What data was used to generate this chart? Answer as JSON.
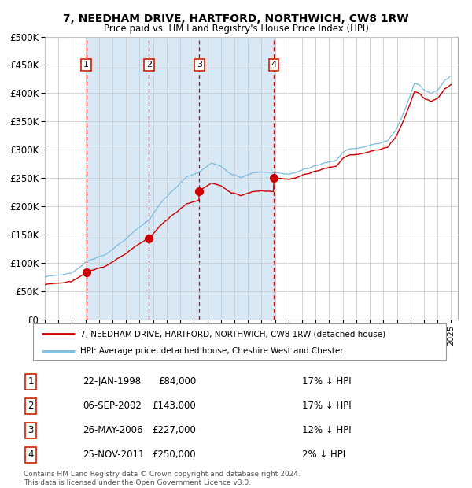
{
  "title1": "7, NEEDHAM DRIVE, HARTFORD, NORTHWICH, CW8 1RW",
  "title2": "Price paid vs. HM Land Registry's House Price Index (HPI)",
  "legend_line1": "7, NEEDHAM DRIVE, HARTFORD, NORTHWICH, CW8 1RW (detached house)",
  "legend_line2": "HPI: Average price, detached house, Cheshire West and Chester",
  "footer1": "Contains HM Land Registry data © Crown copyright and database right 2024.",
  "footer2": "This data is licensed under the Open Government Licence v3.0.",
  "sale_times": [
    1998.06,
    2002.69,
    2006.4,
    2011.9
  ],
  "sale_prices": [
    84000,
    143000,
    227000,
    250000
  ],
  "sale_labels": [
    "1",
    "2",
    "3",
    "4"
  ],
  "sale_table": [
    [
      "1",
      "22-JAN-1998",
      "£84,000",
      "17% ↓ HPI"
    ],
    [
      "2",
      "06-SEP-2002",
      "£143,000",
      "17% ↓ HPI"
    ],
    [
      "3",
      "26-MAY-2006",
      "£227,000",
      "12% ↓ HPI"
    ],
    [
      "4",
      "25-NOV-2011",
      "£250,000",
      "2% ↓ HPI"
    ]
  ],
  "hpi_color": "#7bbde0",
  "price_color": "#cc0000",
  "bg_shaded_color": "#d8e8f5",
  "vline_color": "#cc0000",
  "grid_color": "#cccccc",
  "ylim": [
    0,
    500000
  ],
  "yticks": [
    0,
    50000,
    100000,
    150000,
    200000,
    250000,
    300000,
    350000,
    400000,
    450000,
    500000
  ],
  "xlim_start": 1995.0,
  "xlim_end": 2025.5,
  "hpi_anchors": [
    [
      1995.0,
      75000
    ],
    [
      1996.0,
      78000
    ],
    [
      1997.0,
      82000
    ],
    [
      1998.06,
      101205
    ],
    [
      1999.5,
      115000
    ],
    [
      2001.0,
      138000
    ],
    [
      2002.69,
      172289
    ],
    [
      2003.5,
      200000
    ],
    [
      2004.5,
      228000
    ],
    [
      2005.5,
      252000
    ],
    [
      2006.4,
      257955
    ],
    [
      2007.3,
      275000
    ],
    [
      2008.0,
      270000
    ],
    [
      2008.8,
      252000
    ],
    [
      2009.5,
      246000
    ],
    [
      2010.3,
      255000
    ],
    [
      2011.0,
      258000
    ],
    [
      2011.9,
      255102
    ],
    [
      2012.5,
      253000
    ],
    [
      2013.0,
      252000
    ],
    [
      2013.5,
      255000
    ],
    [
      2014.0,
      260000
    ],
    [
      2014.5,
      262000
    ],
    [
      2015.5,
      270000
    ],
    [
      2016.5,
      276000
    ],
    [
      2017.0,
      290000
    ],
    [
      2017.5,
      296000
    ],
    [
      2018.0,
      298000
    ],
    [
      2018.5,
      300000
    ],
    [
      2019.0,
      302000
    ],
    [
      2019.5,
      305000
    ],
    [
      2020.3,
      308000
    ],
    [
      2021.0,
      330000
    ],
    [
      2021.5,
      358000
    ],
    [
      2022.0,
      390000
    ],
    [
      2022.3,
      410000
    ],
    [
      2022.7,
      405000
    ],
    [
      2023.0,
      398000
    ],
    [
      2023.5,
      392000
    ],
    [
      2024.0,
      398000
    ],
    [
      2024.5,
      415000
    ],
    [
      2025.0,
      425000
    ]
  ]
}
